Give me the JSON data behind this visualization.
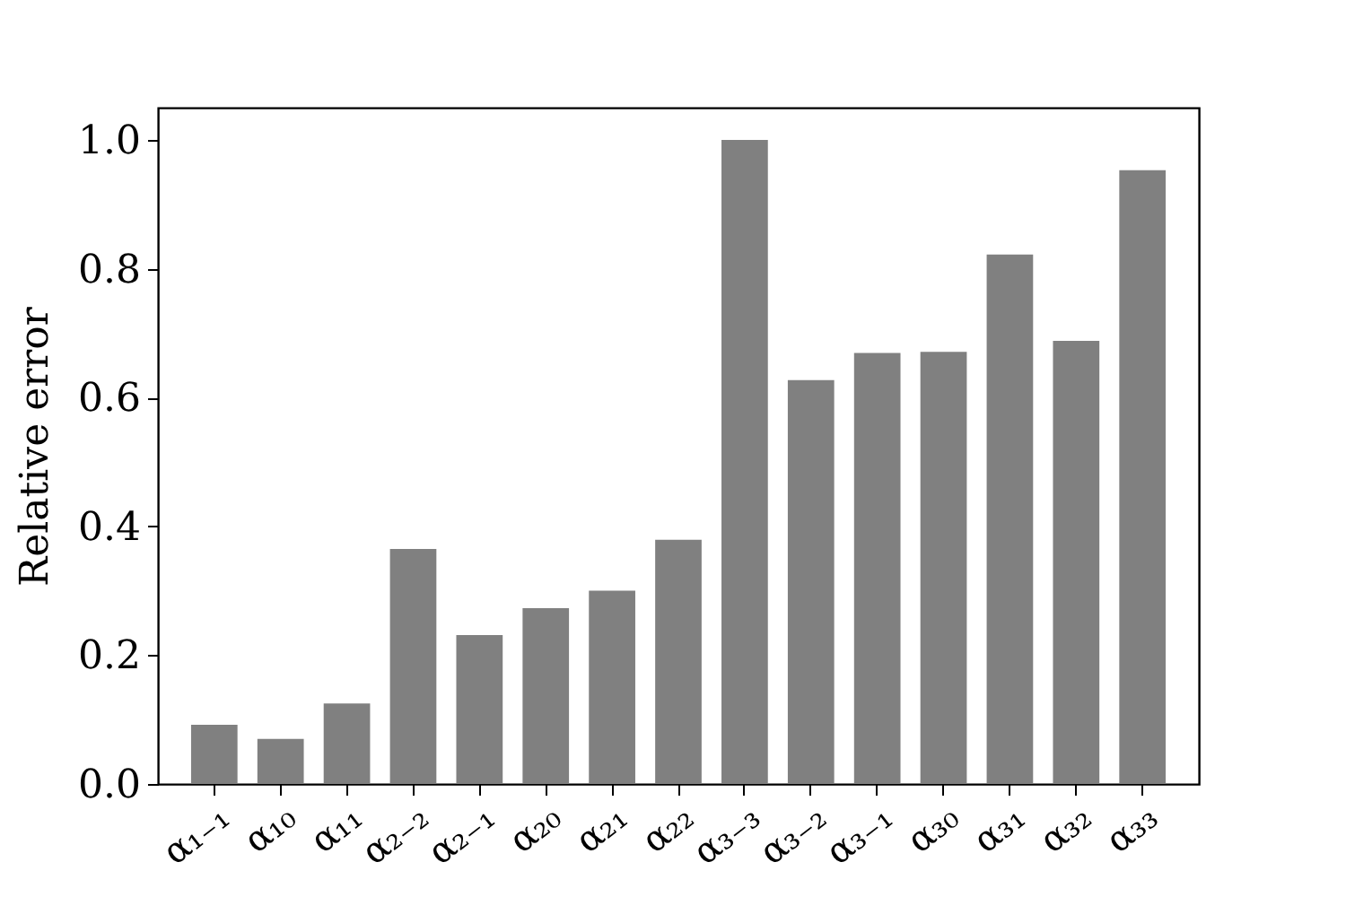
{
  "chart_data": {
    "type": "bar",
    "ylabel": "Relative error",
    "categories": [
      "α₁₋₁",
      "α₁₀",
      "α₁₁",
      "α₂₋₂",
      "α₂₋₁",
      "α₂₀",
      "α₂₁",
      "α₂₂",
      "α₃₋₃",
      "α₃₋₂",
      "α₃₋₁",
      "α₃₀",
      "α₃₁",
      "α₃₂",
      "α₃₃"
    ],
    "values": [
      0.092,
      0.07,
      0.125,
      0.365,
      0.231,
      0.273,
      0.3,
      0.379,
      1.0,
      0.627,
      0.669,
      0.671,
      0.822,
      0.688,
      0.953
    ],
    "color": "#808080",
    "ylim": [
      0,
      1.05
    ],
    "yticks": [
      {
        "value": 0,
        "label": "0.0"
      },
      {
        "value": 0.2,
        "label": "0.2"
      },
      {
        "value": 0.4,
        "label": "0.4"
      },
      {
        "value": 0.6,
        "label": "0.6"
      },
      {
        "value": 0.8,
        "label": "0.8"
      },
      {
        "value": 1,
        "label": "1.0"
      }
    ],
    "grid": false
  }
}
